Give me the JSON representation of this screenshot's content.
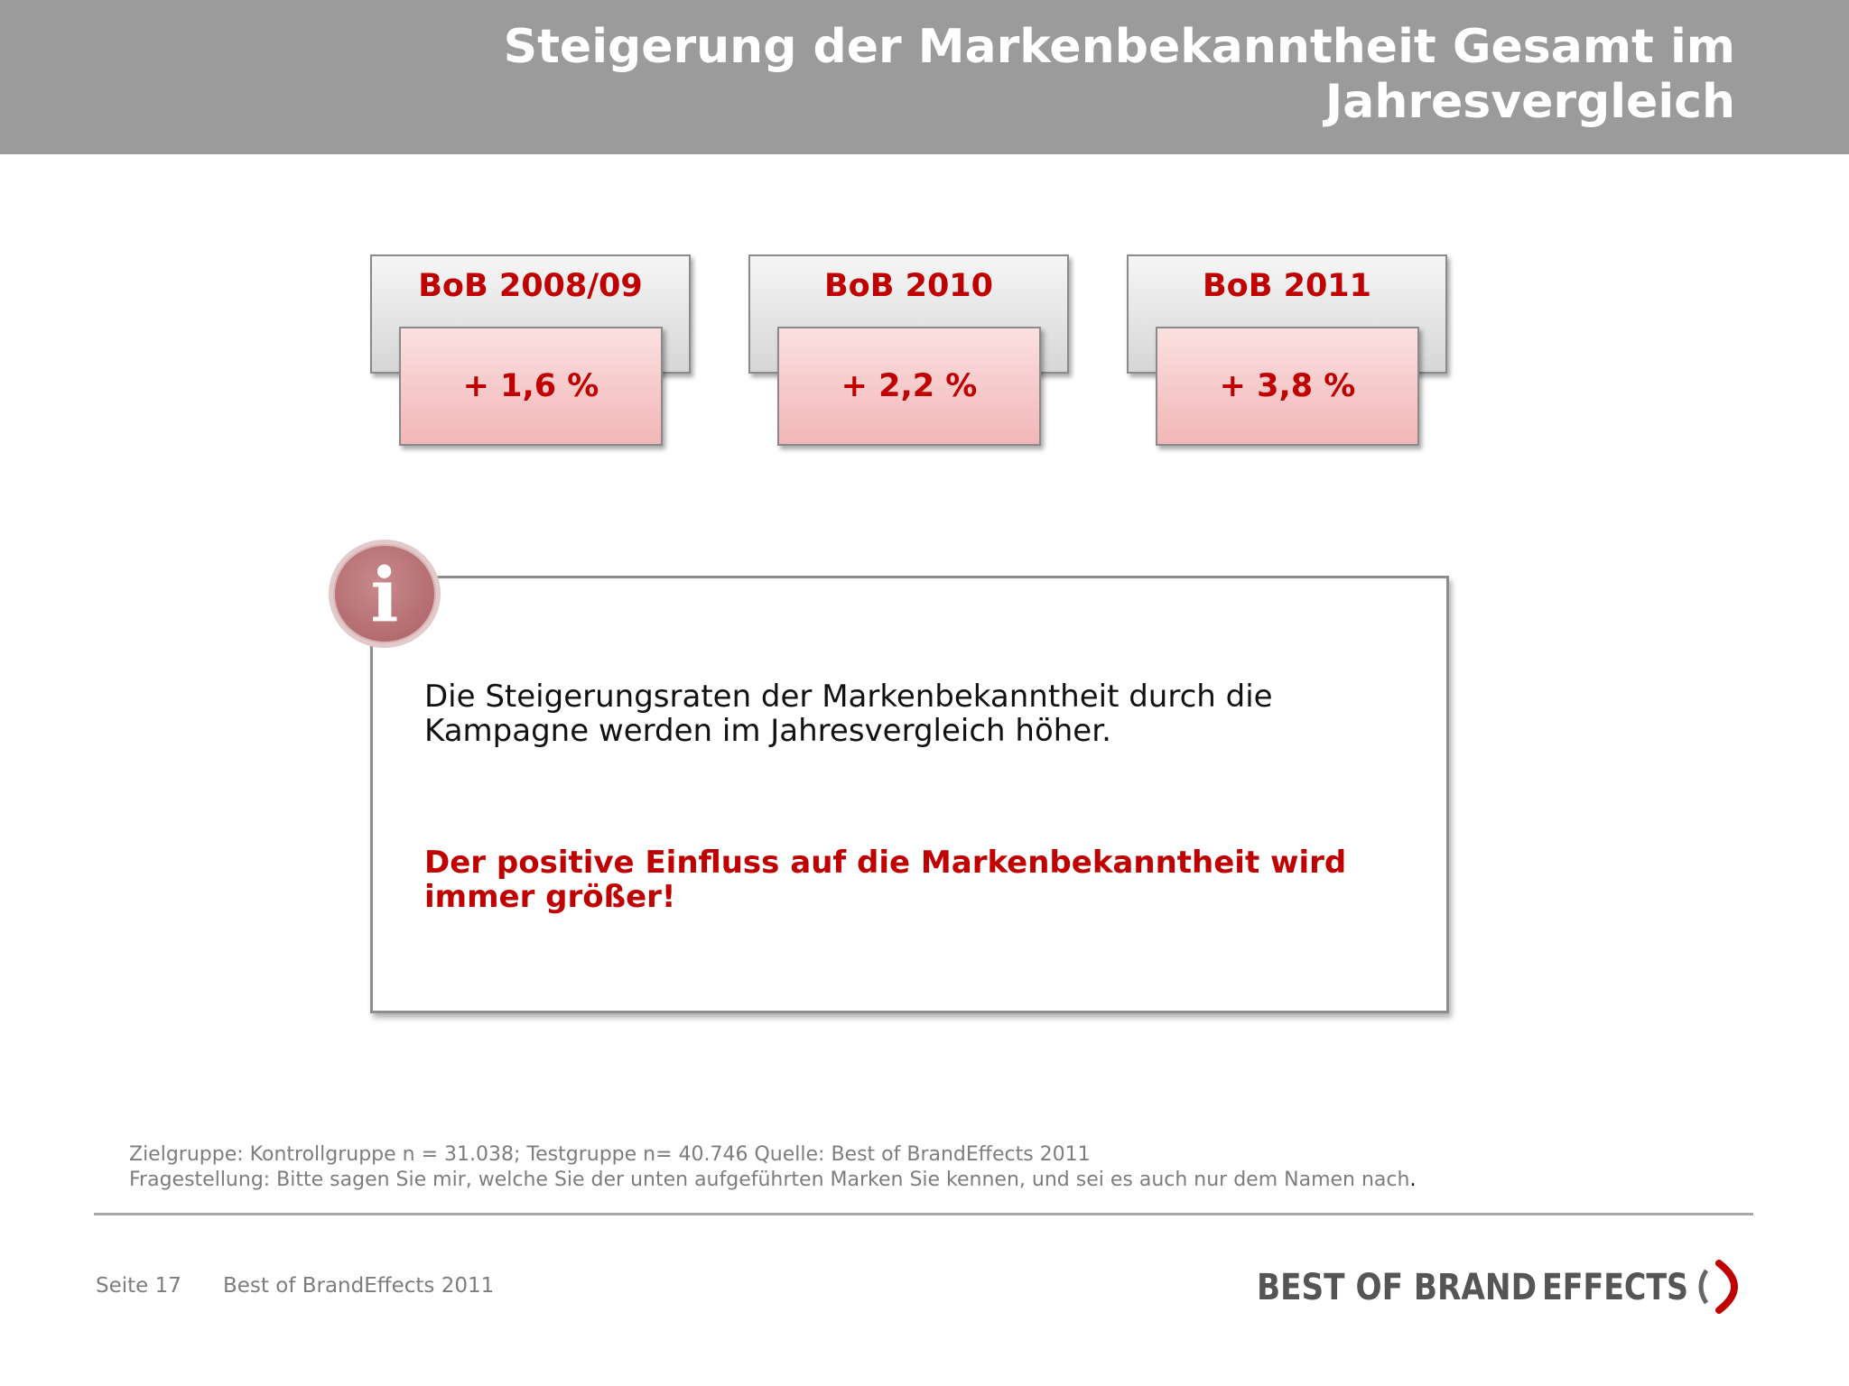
{
  "header": {
    "title_line1": "Steigerung der Markenbekanntheit Gesamt im",
    "title_line2": "Jahresvergleich"
  },
  "results": [
    {
      "label": "BoB 2008/09",
      "value": "+ 1,6 %"
    },
    {
      "label": "BoB 2010",
      "value": "+ 2,2 %"
    },
    {
      "label": "BoB 2011",
      "value": "+ 3,8 %"
    }
  ],
  "info": {
    "icon": "info-icon",
    "icon_glyph": "i",
    "text_line1": "Die Steigerungsraten der Markenbekanntheit durch die",
    "text_line2": "Kampagne werden im Jahresvergleich höher.",
    "highlight_line1": "Der positive Einfluss auf die Markenbekanntheit wird",
    "highlight_line2": "immer größer!"
  },
  "footnote": {
    "line1": "Zielgruppe: Kontrollgruppe n = 31.038; Testgruppe n= 40.746 Quelle: Best of BrandEffects 2011",
    "line2": "Fragestellung: Bitte sagen Sie mir, welche Sie der unten aufgeführten Marken Sie kennen, und sei es auch nur dem Namen nach",
    "line2_end": "."
  },
  "footer": {
    "page": "Seite 17",
    "brand": "Best of BrandEffects 2011",
    "logo_text_1": "BEST OF BRAND",
    "logo_text_2": "EFFECTS"
  },
  "colors": {
    "header_bg": "#9b9b9b",
    "accent_red": "#c00000",
    "value_pink": "#f4c4c6",
    "logo_text": "#555555"
  }
}
